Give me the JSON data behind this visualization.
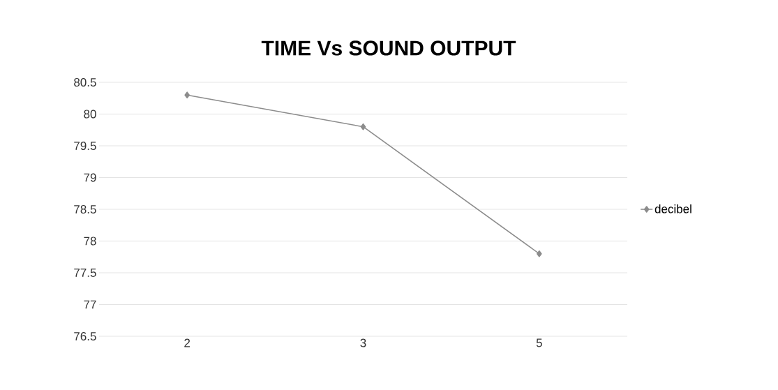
{
  "chart_data": {
    "type": "line",
    "title": "TIME Vs SOUND OUTPUT",
    "categories": [
      "2",
      "3",
      "5"
    ],
    "series": [
      {
        "name": "decibel",
        "color": "#8c8c8c",
        "values": [
          80.3,
          79.8,
          77.8
        ]
      }
    ],
    "ylim": [
      76.5,
      80.5
    ],
    "yticks": [
      76.5,
      77,
      77.5,
      78,
      78.5,
      79,
      79.5,
      80,
      80.5
    ],
    "grid": "y",
    "legend": "right",
    "marker": "diamond",
    "line_style": "solid"
  }
}
